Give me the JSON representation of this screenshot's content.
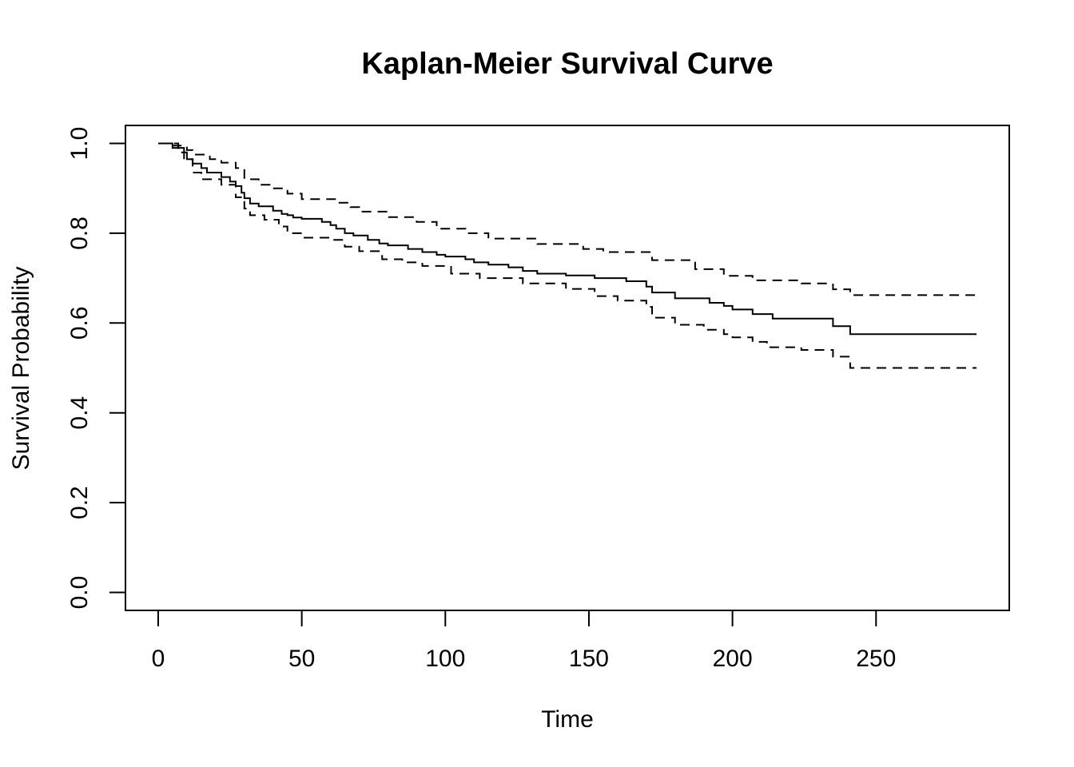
{
  "chart_data": {
    "type": "line",
    "title": "Kaplan-Meier Survival Curve",
    "xlabel": "Time",
    "ylabel": "Survival Probability",
    "xlim": [
      -11.4,
      296.4
    ],
    "ylim": [
      -0.04,
      1.04
    ],
    "x_ticks": [
      0,
      50,
      100,
      150,
      200,
      250
    ],
    "x_tick_labels": [
      "0",
      "50",
      "100",
      "150",
      "200",
      "250"
    ],
    "y_ticks": [
      0,
      0.2,
      0.4,
      0.6,
      0.8,
      1.0
    ],
    "y_tick_labels": [
      "0.0",
      "0.2",
      "0.4",
      "0.6",
      "0.8",
      "1.0"
    ],
    "grid": false,
    "legend": "none",
    "series": [
      {
        "style": "solid",
        "step": true,
        "x": [
          0,
          5,
          7,
          9,
          10,
          12,
          15,
          17,
          22,
          25,
          27,
          29,
          30,
          32,
          35,
          40,
          43,
          45,
          47,
          50,
          57,
          60,
          62,
          65,
          68,
          73,
          77,
          80,
          87,
          92,
          97,
          100,
          107,
          110,
          115,
          122,
          127,
          132,
          142,
          152,
          163,
          170,
          172,
          180,
          192,
          197,
          200,
          207,
          214,
          224,
          235,
          241,
          285
        ],
        "y": [
          1.0,
          0.995,
          0.99,
          0.98,
          0.965,
          0.955,
          0.945,
          0.935,
          0.925,
          0.915,
          0.905,
          0.89,
          0.878,
          0.866,
          0.86,
          0.85,
          0.843,
          0.84,
          0.835,
          0.832,
          0.825,
          0.818,
          0.81,
          0.8,
          0.795,
          0.785,
          0.777,
          0.773,
          0.765,
          0.758,
          0.752,
          0.748,
          0.742,
          0.735,
          0.73,
          0.724,
          0.716,
          0.71,
          0.706,
          0.7,
          0.693,
          0.681,
          0.668,
          0.655,
          0.645,
          0.638,
          0.63,
          0.62,
          0.61,
          0.61,
          0.593,
          0.575,
          0.575
        ]
      },
      {
        "style": "dashed",
        "step": true,
        "x": [
          0,
          7,
          10,
          12,
          18,
          22,
          27,
          30,
          35,
          40,
          45,
          50,
          62,
          67,
          70,
          80,
          90,
          97,
          107,
          115,
          132,
          148,
          155,
          172,
          187,
          197,
          207,
          224,
          235,
          241,
          285
        ],
        "y": [
          1.0,
          0.995,
          0.985,
          0.975,
          0.965,
          0.957,
          0.945,
          0.92,
          0.908,
          0.9,
          0.888,
          0.876,
          0.868,
          0.858,
          0.848,
          0.836,
          0.825,
          0.81,
          0.8,
          0.788,
          0.776,
          0.765,
          0.758,
          0.74,
          0.72,
          0.705,
          0.695,
          0.688,
          0.675,
          0.662,
          0.662
        ]
      },
      {
        "style": "dashed",
        "step": true,
        "x": [
          0,
          5,
          7,
          9,
          12,
          15,
          22,
          27,
          30,
          32,
          37,
          42,
          45,
          50,
          60,
          65,
          70,
          78,
          85,
          92,
          102,
          112,
          127,
          142,
          152,
          160,
          170,
          172,
          180,
          190,
          197,
          200,
          207,
          212,
          224,
          235,
          241,
          285
        ],
        "y": [
          1.0,
          0.99,
          0.98,
          0.965,
          0.935,
          0.92,
          0.908,
          0.88,
          0.855,
          0.84,
          0.83,
          0.815,
          0.8,
          0.79,
          0.785,
          0.77,
          0.76,
          0.742,
          0.735,
          0.727,
          0.71,
          0.7,
          0.688,
          0.676,
          0.66,
          0.65,
          0.636,
          0.612,
          0.596,
          0.585,
          0.575,
          0.568,
          0.558,
          0.546,
          0.54,
          0.525,
          0.5,
          0.5
        ]
      }
    ]
  }
}
